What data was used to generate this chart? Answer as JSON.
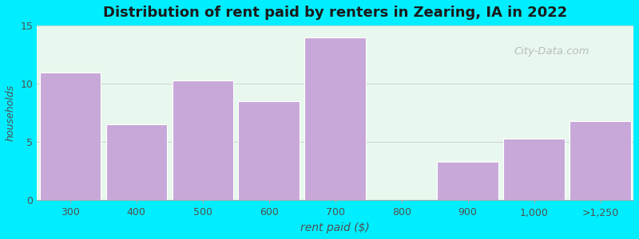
{
  "categories": [
    "300",
    "400",
    "500",
    "600",
    "700",
    "800",
    "900",
    "1,000",
    ">1,250"
  ],
  "values": [
    11,
    6.5,
    10.3,
    8.5,
    14,
    0,
    3.3,
    5.3,
    6.8
  ],
  "bar_color": "#c8a8d8",
  "bar_edgecolor": "#ffffff",
  "title": "Distribution of rent paid by renters in Zearing, IA in 2022",
  "title_fontsize": 13,
  "title_fontweight": "bold",
  "xlabel": "rent paid ($)",
  "ylabel": "households",
  "xlabel_fontsize": 10,
  "ylabel_fontsize": 9,
  "ylim": [
    0,
    15
  ],
  "yticks": [
    0,
    5,
    10,
    15
  ],
  "background_outer": "#00eeff",
  "background_inner_left": "#e8f8ee",
  "background_inner_right": "#f5f8f5",
  "bar_width": 0.92,
  "watermark": "City-Data.com",
  "figsize": [
    8.0,
    3.0
  ],
  "dpi": 100
}
